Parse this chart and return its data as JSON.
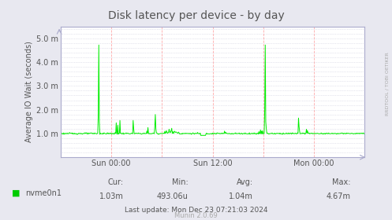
{
  "title": "Disk latency per device - by day",
  "ylabel": "Average IO Wait (seconds)",
  "x_tick_labels": [
    "Sun 00:00",
    "Sun 12:00",
    "Mon 00:00"
  ],
  "ytick_labels": [
    "1.0 m",
    "2.0 m",
    "3.0 m",
    "4.0 m",
    "5.0 m"
  ],
  "ytick_values": [
    1.0,
    2.0,
    3.0,
    4.0,
    5.0
  ],
  "legend_label": "nvme0n1",
  "legend_color": "#00cc00",
  "cur": "1.03m",
  "min": "493.06u",
  "avg": "1.04m",
  "max": "4.67m",
  "last_update": "Last update: Mon Dec 23 07:21:03 2024",
  "munin_version": "Munin 2.0.69",
  "bg_color": "#e8e8f0",
  "plot_bg_color": "#ffffff",
  "grid_color_v": "#ffaaaa",
  "grid_color_h": "#ccccdd",
  "line_color": "#00ee00",
  "rrdtool_text": "RRDTOOL / TOBI OETIKER",
  "title_color": "#555555",
  "watermark_color": "#aaaaaa",
  "text_color": "#555555"
}
